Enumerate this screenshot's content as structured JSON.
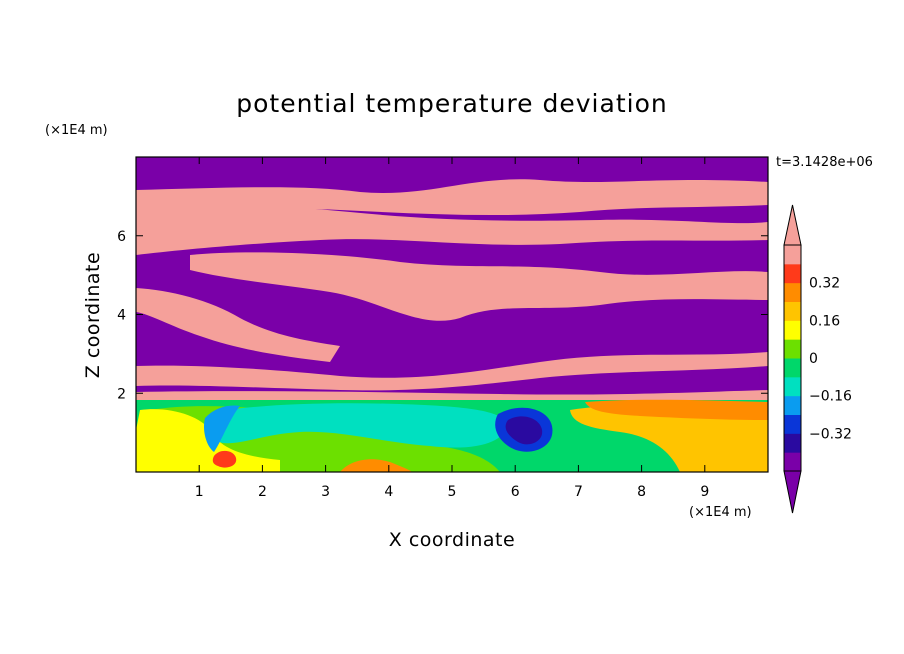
{
  "chart_data": {
    "type": "heatmap",
    "title": "potential temperature deviation",
    "xlabel": "X coordinate",
    "ylabel": "Z coordinate",
    "x_unit": "(×1E4 m)",
    "y_unit": "(×1E4 m)",
    "time_label": "t=3.1428e+06",
    "xlim": [
      0,
      10
    ],
    "ylim": [
      0,
      8
    ],
    "x_ticks": [
      "1",
      "2",
      "3",
      "4",
      "5",
      "6",
      "7",
      "8",
      "9"
    ],
    "y_ticks": [
      "2",
      "4",
      "6"
    ],
    "colorbar": {
      "levels": [
        -0.48,
        -0.4,
        -0.32,
        -0.24,
        -0.16,
        -0.08,
        0,
        0.08,
        0.16,
        0.24,
        0.32,
        0.4
      ],
      "tick_labels": [
        "0.32",
        "0.16",
        "0",
        "−0.16",
        "−0.32"
      ],
      "colors": [
        "#7a00a8",
        "#2a0aa0",
        "#0a36d8",
        "#0a9cf0",
        "#00e0c0",
        "#00d76a",
        "#6ce000",
        "#ffff00",
        "#ffc400",
        "#ff8c00",
        "#ff3a1a",
        "#f5a09a"
      ]
    }
  }
}
